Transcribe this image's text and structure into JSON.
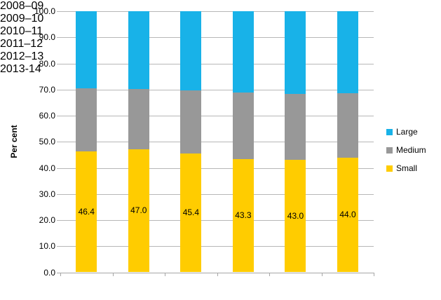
{
  "chart_data": {
    "type": "bar",
    "stacked": true,
    "title": "",
    "xlabel": "",
    "ylabel": "Per cent",
    "ylim": [
      0,
      100
    ],
    "ytick_step": 10,
    "grid": true,
    "legend_position": "right",
    "yticks": [
      "100.0",
      "90.0",
      "80.0",
      "70.0",
      "60.0",
      "50.0",
      "40.0",
      "30.0",
      "20.0",
      "10.0",
      "0.0"
    ],
    "categories": [
      "2008–09",
      "2009–10",
      "2010–11",
      "2011–12",
      "2012–13",
      "2013-14"
    ],
    "series": [
      {
        "name": "Small",
        "color": "#FFCC00",
        "values": [
          46.4,
          47.0,
          45.4,
          43.3,
          43.0,
          44.0
        ],
        "data_labels": [
          "46.4",
          "47.0",
          "45.4",
          "43.3",
          "43.0",
          "44.0"
        ]
      },
      {
        "name": "Medium",
        "color": "#989898",
        "values": [
          24.1,
          23.3,
          24.2,
          25.6,
          25.2,
          24.5
        ]
      },
      {
        "name": "Large",
        "color": "#18B2E8",
        "values": [
          29.5,
          29.7,
          30.4,
          31.1,
          31.8,
          31.5
        ]
      }
    ],
    "legend": [
      "Large",
      "Medium",
      "Small"
    ]
  },
  "colors": {
    "background": "#FFFFFF",
    "gridline": "#B7B7B7",
    "axis": "#A6A6A6",
    "text": "#000000"
  }
}
